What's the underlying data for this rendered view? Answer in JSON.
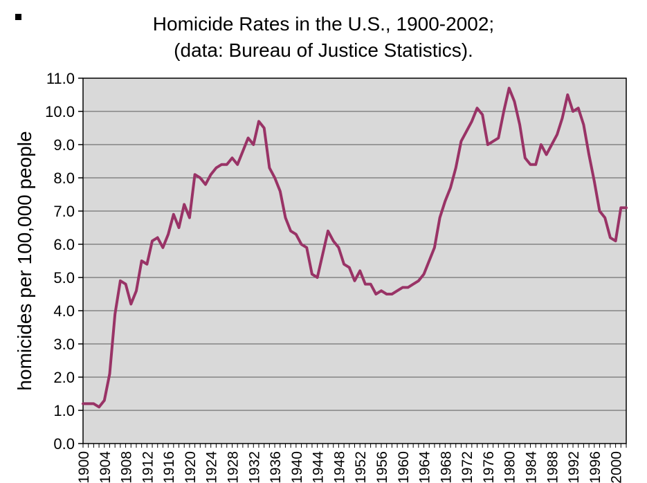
{
  "chart_data": {
    "type": "line",
    "title_line1": "Homicide Rates in the U.S., 1900-2002;",
    "title_line2": "(data: Bureau of Justice Statistics).",
    "ylabel": "homicides per 100,000 people",
    "ylim": [
      0,
      11
    ],
    "grid": "horizontal",
    "legend": "none",
    "line_color": "#993366",
    "plot_bg": "#d9d9d9",
    "grid_color": "#595959",
    "y_tick_labels": [
      "0.0",
      "1.0",
      "2.0",
      "3.0",
      "4.0",
      "5.0",
      "6.0",
      "7.0",
      "8.0",
      "9.0",
      "10.0",
      "11.0"
    ],
    "x_tick_labels": [
      "1900",
      "1904",
      "1908",
      "1912",
      "1916",
      "1920",
      "1924",
      "1928",
      "1932",
      "1936",
      "1940",
      "1944",
      "1948",
      "1952",
      "1956",
      "1960",
      "1964",
      "1968",
      "1972",
      "1976",
      "1980",
      "1984",
      "1988",
      "1992",
      "1996",
      "2000"
    ],
    "x": [
      1900,
      1901,
      1902,
      1903,
      1904,
      1905,
      1906,
      1907,
      1908,
      1909,
      1910,
      1911,
      1912,
      1913,
      1914,
      1915,
      1916,
      1917,
      1918,
      1919,
      1920,
      1921,
      1922,
      1923,
      1924,
      1925,
      1926,
      1927,
      1928,
      1929,
      1930,
      1931,
      1932,
      1933,
      1934,
      1935,
      1936,
      1937,
      1938,
      1939,
      1940,
      1941,
      1942,
      1943,
      1944,
      1945,
      1946,
      1947,
      1948,
      1949,
      1950,
      1951,
      1952,
      1953,
      1954,
      1955,
      1956,
      1957,
      1958,
      1959,
      1960,
      1961,
      1962,
      1963,
      1964,
      1965,
      1966,
      1967,
      1968,
      1969,
      1970,
      1971,
      1972,
      1973,
      1974,
      1975,
      1976,
      1977,
      1978,
      1979,
      1980,
      1981,
      1982,
      1983,
      1984,
      1985,
      1986,
      1987,
      1988,
      1989,
      1990,
      1991,
      1992,
      1993,
      1994,
      1995,
      1996,
      1997,
      1998,
      1999,
      2000,
      2001,
      2002
    ],
    "values": [
      1.2,
      1.2,
      1.2,
      1.1,
      1.3,
      2.1,
      3.9,
      4.9,
      4.8,
      4.2,
      4.6,
      5.5,
      5.4,
      6.1,
      6.2,
      5.9,
      6.3,
      6.9,
      6.5,
      7.2,
      6.8,
      8.1,
      8.0,
      7.8,
      8.1,
      8.3,
      8.4,
      8.4,
      8.6,
      8.4,
      8.8,
      9.2,
      9.0,
      9.7,
      9.5,
      8.3,
      8.0,
      7.6,
      6.8,
      6.4,
      6.3,
      6.0,
      5.9,
      5.1,
      5.0,
      5.7,
      6.4,
      6.1,
      5.9,
      5.4,
      5.3,
      4.9,
      5.2,
      4.8,
      4.8,
      4.5,
      4.6,
      4.5,
      4.5,
      4.6,
      4.7,
      4.7,
      4.8,
      4.9,
      5.1,
      5.5,
      5.9,
      6.8,
      7.3,
      7.7,
      8.3,
      9.1,
      9.4,
      9.7,
      10.1,
      9.9,
      9.0,
      9.1,
      9.2,
      10.0,
      10.7,
      10.3,
      9.6,
      8.6,
      8.4,
      8.4,
      9.0,
      8.7,
      9.0,
      9.3,
      9.8,
      10.5,
      10.0,
      10.1,
      9.6,
      8.7,
      7.9,
      7.0,
      6.8,
      6.2,
      6.1,
      7.1,
      7.1
    ]
  }
}
